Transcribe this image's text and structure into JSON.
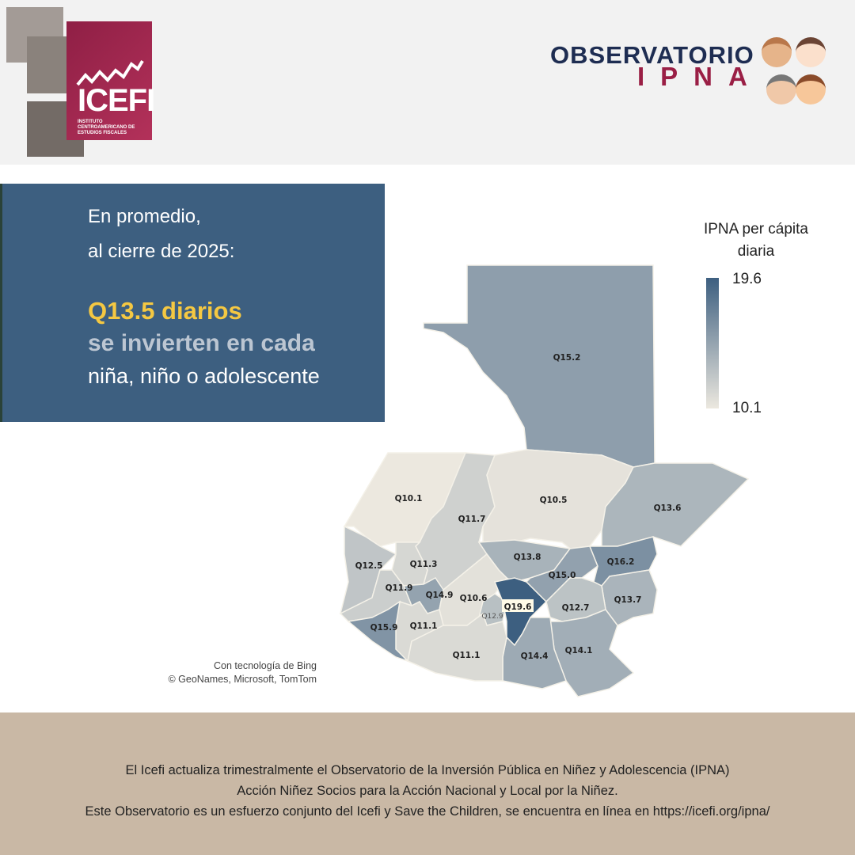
{
  "header": {
    "logo_name": "ICEFI",
    "logo_sub": "INSTITUTO CENTROAMERICANO DE ESTUDIOS FISCALES",
    "observatorio": "OBSERVATORIO",
    "ipna": "IPNA"
  },
  "callout": {
    "line1": "En promedio,",
    "line2": "al cierre de 2025:",
    "amount": "Q13.5 diarios",
    "line3": "se invierten en cada",
    "line4": "niña, niño o adolescente"
  },
  "legend": {
    "title": "IPNA per cápita diaria",
    "max": "19.6",
    "min": "10.1",
    "color_max": "#3d5f80",
    "color_min": "#ece8df"
  },
  "map": {
    "credit1": "Con tecnología de Bing",
    "credit2": "© GeoNames, Microsoft, TomTom",
    "regions": [
      {
        "label": "Q15.2",
        "value": 15.2
      },
      {
        "label": "Q10.1",
        "value": 10.1
      },
      {
        "label": "Q11.7",
        "value": 11.7
      },
      {
        "label": "Q10.5",
        "value": 10.5
      },
      {
        "label": "Q13.6",
        "value": 13.6
      },
      {
        "label": "Q13.8",
        "value": 13.8
      },
      {
        "label": "Q12.5",
        "value": 12.5
      },
      {
        "label": "Q11.3",
        "value": 11.3
      },
      {
        "label": "Q11.9",
        "value": 11.9
      },
      {
        "label": "Q14.9",
        "value": 14.9
      },
      {
        "label": "Q10.6",
        "value": 10.6
      },
      {
        "label": "Q12.9",
        "value": 12.9
      },
      {
        "label": "Q19.6",
        "value": 19.6
      },
      {
        "label": "Q15.0",
        "value": 15.0
      },
      {
        "label": "Q16.2",
        "value": 16.2
      },
      {
        "label": "Q13.7",
        "value": 13.7
      },
      {
        "label": "Q12.7",
        "value": 12.7
      },
      {
        "label": "Q14.1",
        "value": 14.1
      },
      {
        "label": "Q14.4",
        "value": 14.4
      },
      {
        "label": "Q11.1",
        "value": 11.1
      },
      {
        "label": "Q11.1",
        "value": 11.1
      },
      {
        "label": "Q15.9",
        "value": 15.9
      }
    ]
  },
  "footer": {
    "line1": "El Icefi actualiza trimestralmente el Observatorio de la Inversión Pública en Niñez y Adolescencia (IPNA)",
    "line2": "Acción Niñez Socios para la Acción Nacional y Local por la Niñez.",
    "line3": "Este Observatorio es un esfuerzo conjunto del Icefi y Save the Children, se encuentra en línea en https://icefi.org/ipna/"
  }
}
